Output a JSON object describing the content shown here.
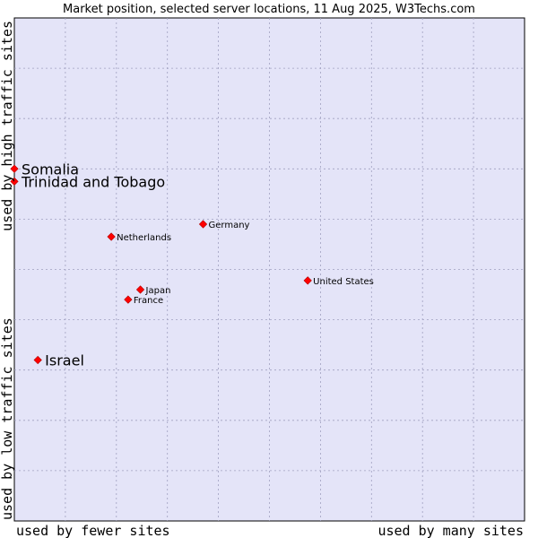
{
  "chart_data": {
    "type": "scatter",
    "title": "Market position, selected server locations, 11 Aug 2025, W3Techs.com",
    "xlabel_left": "used by fewer sites",
    "xlabel_right": "used by many sites",
    "ylabel_bottom": "used by low traffic sites",
    "ylabel_top": "used by high traffic sites",
    "xlim": [
      0,
      10
    ],
    "ylim": [
      0,
      10
    ],
    "grid": true,
    "colors": {
      "plot_background": "#e4e4f8",
      "grid": "#a0a0c0",
      "marker": "#ff0000"
    },
    "points": [
      {
        "name": "Somalia",
        "x": 0.0,
        "y": 7.0,
        "emphasis": true
      },
      {
        "name": "Trinidad and Tobago",
        "x": 0.0,
        "y": 6.75,
        "emphasis": true
      },
      {
        "name": "Germany",
        "x": 3.7,
        "y": 5.9,
        "emphasis": false
      },
      {
        "name": "Netherlands",
        "x": 1.9,
        "y": 5.65,
        "emphasis": false
      },
      {
        "name": "United States",
        "x": 5.75,
        "y": 4.78,
        "emphasis": false
      },
      {
        "name": "Japan",
        "x": 2.47,
        "y": 4.6,
        "emphasis": false
      },
      {
        "name": "France",
        "x": 2.23,
        "y": 4.4,
        "emphasis": false
      },
      {
        "name": "Israel",
        "x": 0.46,
        "y": 3.2,
        "emphasis": true
      }
    ]
  }
}
